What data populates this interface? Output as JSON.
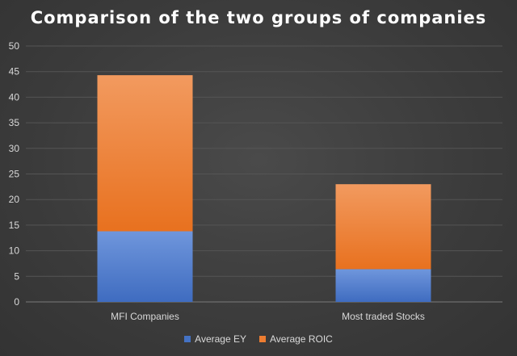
{
  "chart_data": {
    "type": "bar",
    "stacked": true,
    "title": "Comparison of the two groups of companies",
    "categories": [
      "MFI Companies",
      "Most traded Stocks"
    ],
    "series": [
      {
        "name": "Average EY",
        "values": [
          13.8,
          6.4
        ],
        "color": "#4472c4"
      },
      {
        "name": "Average ROIC",
        "values": [
          30.5,
          16.6
        ],
        "color": "#ed7d31"
      }
    ],
    "xlabel": "",
    "ylabel": "",
    "ylim": [
      0,
      50
    ],
    "yticks": [
      0,
      5,
      10,
      15,
      20,
      25,
      30,
      35,
      40,
      45,
      50
    ],
    "grid": true,
    "legend_position": "bottom"
  }
}
